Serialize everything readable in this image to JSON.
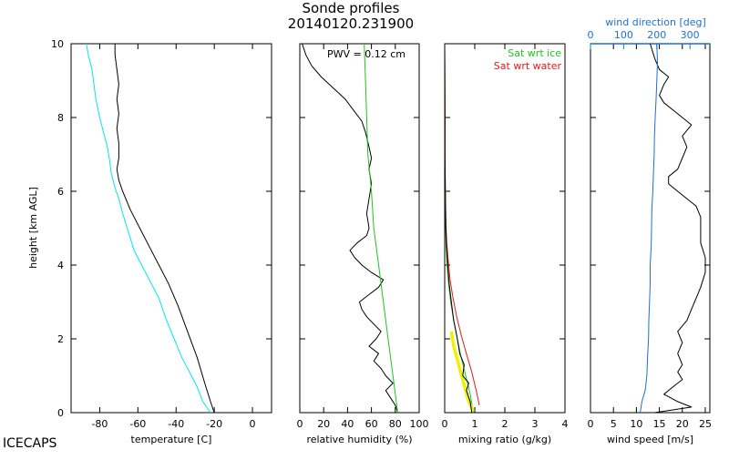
{
  "figure": {
    "title": "Sonde profiles",
    "subtitle": "20140120.231900",
    "footer_label": "ICECAPS",
    "ylabel": "height [km AGL]"
  },
  "chart_data": [
    {
      "type": "line",
      "xlabel": "temperature [C]",
      "xlim": [
        -95,
        10
      ],
      "xticks": [
        "-80",
        "-60",
        "-40",
        "-20",
        "0"
      ],
      "xtick_values": [
        -80,
        -60,
        -40,
        -20,
        0
      ],
      "ylim": [
        0,
        10
      ],
      "yticks": [
        "0",
        "2",
        "4",
        "6",
        "8",
        "10"
      ],
      "ytick_values": [
        0,
        2,
        4,
        6,
        8,
        10
      ],
      "series": [
        {
          "color": "#000000",
          "points": [
            [
              -20,
              0.0
            ],
            [
              -22,
              0.3
            ],
            [
              -25,
              0.8
            ],
            [
              -29,
              1.5
            ],
            [
              -34,
              2.2
            ],
            [
              -39,
              2.9
            ],
            [
              -44,
              3.5
            ],
            [
              -49,
              4.0
            ],
            [
              -54,
              4.5
            ],
            [
              -59,
              5.0
            ],
            [
              -64,
              5.5
            ],
            [
              -68,
              6.0
            ],
            [
              -70,
              6.3
            ],
            [
              -71,
              6.6
            ],
            [
              -70,
              6.9
            ],
            [
              -70,
              7.3
            ],
            [
              -71,
              7.7
            ],
            [
              -70,
              8.1
            ],
            [
              -71,
              8.5
            ],
            [
              -70,
              8.9
            ],
            [
              -71,
              9.3
            ],
            [
              -72,
              9.7
            ],
            [
              -72,
              10.0
            ]
          ]
        },
        {
          "color": "#00e6f0",
          "points": [
            [
              -22,
              0.0
            ],
            [
              -26,
              0.3
            ],
            [
              -29,
              0.7
            ],
            [
              -33,
              1.1
            ],
            [
              -37,
              1.5
            ],
            [
              -41,
              2.0
            ],
            [
              -45,
              2.5
            ],
            [
              -49,
              3.1
            ],
            [
              -54,
              3.6
            ],
            [
              -58,
              4.0
            ],
            [
              -62,
              4.4
            ],
            [
              -65,
              4.9
            ],
            [
              -68,
              5.4
            ],
            [
              -70,
              5.8
            ],
            [
              -72,
              6.1
            ],
            [
              -74,
              6.5
            ],
            [
              -75,
              6.9
            ],
            [
              -76,
              7.2
            ],
            [
              -78,
              7.6
            ],
            [
              -80,
              8.0
            ],
            [
              -82,
              8.5
            ],
            [
              -83,
              8.9
            ],
            [
              -84,
              9.3
            ],
            [
              -86,
              9.7
            ],
            [
              -87,
              10.0
            ]
          ]
        }
      ]
    },
    {
      "type": "line",
      "xlabel": "relative humidity (%)",
      "xlim": [
        0,
        100
      ],
      "xticks": [
        "0",
        "20",
        "40",
        "60",
        "80",
        "100"
      ],
      "xtick_values": [
        0,
        20,
        40,
        60,
        80,
        100
      ],
      "ylim": [
        0,
        10
      ],
      "annotation": "PWV = 0.12 cm",
      "series": [
        {
          "color": "#000000",
          "points": [
            [
              82,
              0.0
            ],
            [
              80,
              0.2
            ],
            [
              76,
              0.4
            ],
            [
              72,
              0.6
            ],
            [
              78,
              0.8
            ],
            [
              72,
              1.0
            ],
            [
              68,
              1.2
            ],
            [
              62,
              1.4
            ],
            [
              66,
              1.6
            ],
            [
              58,
              1.8
            ],
            [
              64,
              2.0
            ],
            [
              68,
              2.2
            ],
            [
              62,
              2.4
            ],
            [
              56,
              2.6
            ],
            [
              52,
              2.8
            ],
            [
              50,
              3.0
            ],
            [
              58,
              3.2
            ],
            [
              66,
              3.4
            ],
            [
              70,
              3.6
            ],
            [
              60,
              3.8
            ],
            [
              52,
              4.0
            ],
            [
              46,
              4.2
            ],
            [
              42,
              4.4
            ],
            [
              48,
              4.6
            ],
            [
              56,
              4.8
            ],
            [
              58,
              5.0
            ],
            [
              56,
              5.4
            ],
            [
              58,
              5.8
            ],
            [
              60,
              6.2
            ],
            [
              58,
              6.6
            ],
            [
              60,
              6.9
            ],
            [
              58,
              7.2
            ],
            [
              55,
              7.6
            ],
            [
              52,
              7.9
            ],
            [
              45,
              8.2
            ],
            [
              38,
              8.5
            ],
            [
              28,
              8.8
            ],
            [
              18,
              9.1
            ],
            [
              10,
              9.4
            ],
            [
              5,
              9.7
            ],
            [
              2,
              10.0
            ]
          ]
        },
        {
          "color": "#22c322",
          "points": [
            [
              82,
              0.0
            ],
            [
              78,
              1.0
            ],
            [
              74,
              2.0
            ],
            [
              70,
              3.0
            ],
            [
              66,
              4.0
            ],
            [
              62,
              5.0
            ],
            [
              60,
              6.0
            ],
            [
              57,
              7.0
            ],
            [
              56,
              8.0
            ],
            [
              55,
              9.0
            ],
            [
              54,
              10.0
            ]
          ]
        }
      ]
    },
    {
      "type": "line",
      "xlabel": "mixing ratio (g/kg)",
      "xlim": [
        0,
        4
      ],
      "xticks": [
        "0",
        "1",
        "2",
        "3",
        "4"
      ],
      "xtick_values": [
        0,
        1,
        2,
        3,
        4
      ],
      "ylim": [
        0,
        10
      ],
      "legend_placement": "top-right",
      "series": [
        {
          "name": "Sat wrt ice",
          "color": "#22c322",
          "points": [
            [
              0.95,
              0.0
            ],
            [
              0.85,
              0.5
            ],
            [
              0.7,
              1.0
            ],
            [
              0.55,
              1.5
            ],
            [
              0.42,
              2.0
            ],
            [
              0.3,
              2.5
            ],
            [
              0.2,
              3.0
            ],
            [
              0.13,
              3.5
            ],
            [
              0.08,
              4.0
            ],
            [
              0.05,
              4.5
            ],
            [
              0.03,
              5.0
            ],
            [
              0.02,
              6.0
            ],
            [
              0.01,
              7.0
            ],
            [
              0.01,
              8.0
            ],
            [
              0.0,
              10.0
            ]
          ]
        },
        {
          "name": "Sat wrt water",
          "color": "#e41a1a",
          "points": [
            [
              1.15,
              0.2
            ],
            [
              1.05,
              0.6
            ],
            [
              0.9,
              1.1
            ],
            [
              0.72,
              1.6
            ],
            [
              0.55,
              2.1
            ],
            [
              0.4,
              2.6
            ],
            [
              0.28,
              3.1
            ],
            [
              0.18,
              3.6
            ],
            [
              0.12,
              4.1
            ],
            [
              0.07,
              4.6
            ],
            [
              0.04,
              5.1
            ],
            [
              0.02,
              6.0
            ],
            [
              0.01,
              7.0
            ],
            [
              0.01,
              8.0
            ],
            [
              0.0,
              10.0
            ]
          ]
        },
        {
          "color": "#f0f000",
          "points": [
            [
              0.95,
              0.05
            ],
            [
              0.8,
              0.3
            ],
            [
              0.7,
              0.6
            ],
            [
              0.6,
              0.9
            ],
            [
              0.5,
              1.2
            ],
            [
              0.4,
              1.5
            ],
            [
              0.3,
              1.8
            ],
            [
              0.22,
              2.2
            ]
          ]
        },
        {
          "color": "#000000",
          "points": [
            [
              0.9,
              0.0
            ],
            [
              0.85,
              0.3
            ],
            [
              0.72,
              0.6
            ],
            [
              0.8,
              0.8
            ],
            [
              0.6,
              1.0
            ],
            [
              0.65,
              1.3
            ],
            [
              0.5,
              1.6
            ],
            [
              0.42,
              2.0
            ],
            [
              0.3,
              2.5
            ],
            [
              0.22,
              3.0
            ],
            [
              0.15,
              3.5
            ],
            [
              0.1,
              4.0
            ],
            [
              0.06,
              4.5
            ],
            [
              0.04,
              5.0
            ],
            [
              0.02,
              6.0
            ],
            [
              0.01,
              7.0
            ],
            [
              0.01,
              8.0
            ],
            [
              0.0,
              10.0
            ]
          ]
        }
      ]
    },
    {
      "type": "line",
      "xlabel": "wind speed [m/s]",
      "xlim": [
        0,
        26
      ],
      "xticks": [
        "0",
        "5",
        "10",
        "15",
        "20",
        "25"
      ],
      "xtick_values": [
        0,
        5,
        10,
        15,
        20,
        25
      ],
      "top_xlabel": "wind direction [deg]",
      "top_xlim": [
        0,
        360
      ],
      "top_xticks": [
        "0",
        "100",
        "200",
        "300"
      ],
      "top_xtick_values": [
        0,
        100,
        200,
        300
      ],
      "top_axis_color": "#1f6fd1",
      "ylim": [
        0,
        10
      ],
      "series": [
        {
          "color": "#000000",
          "points": [
            [
              14,
              0.0
            ],
            [
              22,
              0.15
            ],
            [
              19,
              0.3
            ],
            [
              16,
              0.5
            ],
            [
              18,
              0.7
            ],
            [
              20,
              0.9
            ],
            [
              19,
              1.1
            ],
            [
              20,
              1.3
            ],
            [
              19,
              1.6
            ],
            [
              20,
              1.9
            ],
            [
              19,
              2.2
            ],
            [
              21,
              2.5
            ],
            [
              22,
              2.8
            ],
            [
              23,
              3.1
            ],
            [
              24,
              3.4
            ],
            [
              25,
              3.8
            ],
            [
              25,
              4.2
            ],
            [
              24,
              4.6
            ],
            [
              24,
              5.0
            ],
            [
              24,
              5.3
            ],
            [
              23,
              5.6
            ],
            [
              21,
              5.8
            ],
            [
              19,
              6.0
            ],
            [
              17,
              6.2
            ],
            [
              17,
              6.4
            ],
            [
              19,
              6.6
            ],
            [
              20,
              6.9
            ],
            [
              21,
              7.2
            ],
            [
              20,
              7.5
            ],
            [
              22,
              7.8
            ],
            [
              20,
              8.0
            ],
            [
              18,
              8.2
            ],
            [
              16,
              8.4
            ],
            [
              15,
              8.6
            ],
            [
              16,
              8.9
            ],
            [
              17,
              9.1
            ],
            [
              15,
              9.3
            ],
            [
              14,
              9.6
            ],
            [
              13,
              10.0
            ]
          ]
        },
        {
          "color": "#1f6fd1",
          "axis": "top",
          "points": [
            [
              150,
              0.0
            ],
            [
              155,
              0.3
            ],
            [
              165,
              0.6
            ],
            [
              170,
              1.0
            ],
            [
              172,
              1.5
            ],
            [
              175,
              2.0
            ],
            [
              176,
              2.5
            ],
            [
              178,
              3.0
            ],
            [
              180,
              3.5
            ],
            [
              180,
              4.0
            ],
            [
              183,
              4.5
            ],
            [
              184,
              5.0
            ],
            [
              185,
              5.5
            ],
            [
              188,
              6.0
            ],
            [
              190,
              6.5
            ],
            [
              192,
              7.0
            ],
            [
              193,
              7.5
            ],
            [
              195,
              8.0
            ],
            [
              198,
              8.5
            ],
            [
              200,
              9.0
            ],
            [
              202,
              9.5
            ],
            [
              200,
              10.0
            ]
          ]
        }
      ]
    }
  ]
}
